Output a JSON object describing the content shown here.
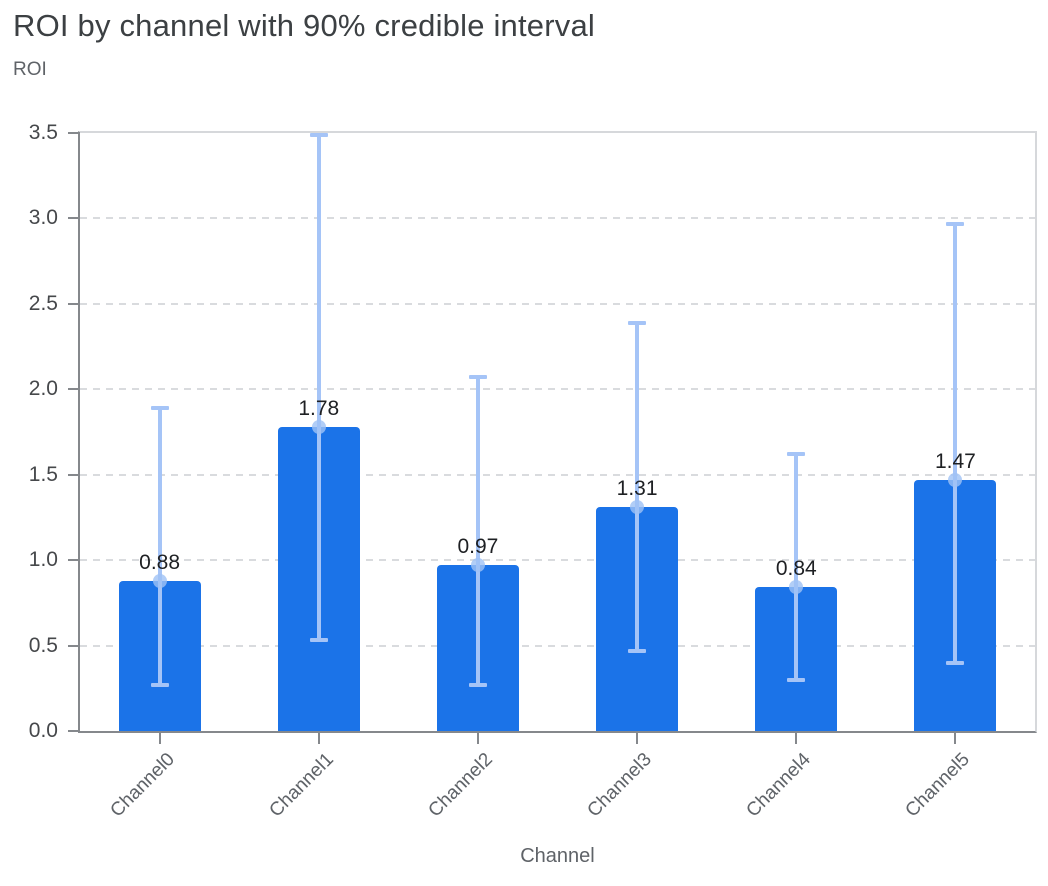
{
  "header": {
    "title": "ROI by channel with 90% credible interval"
  },
  "chart_data": {
    "type": "bar",
    "title": "ROI by channel with 90% credible interval",
    "xlabel": "Channel",
    "ylabel": "ROI",
    "categories": [
      "Channel0",
      "Channel1",
      "Channel2",
      "Channel3",
      "Channel4",
      "Channel5"
    ],
    "values": [
      0.88,
      1.78,
      0.97,
      1.31,
      0.84,
      1.47
    ],
    "value_labels": [
      "0.88",
      "1.78",
      "0.97",
      "1.31",
      "0.84",
      "1.47"
    ],
    "error_low": [
      0.27,
      0.53,
      0.27,
      0.47,
      0.3,
      0.4
    ],
    "error_high": [
      1.89,
      3.49,
      2.07,
      2.39,
      1.62,
      2.97
    ],
    "error_bar_meaning": "90% credible interval",
    "ylim": [
      0,
      3.5
    ],
    "ytick_step": 0.5,
    "ytick_labels": [
      "0.0",
      "0.5",
      "1.0",
      "1.5",
      "2.0",
      "2.5",
      "3.0",
      "3.5"
    ],
    "grid": "dashed-horizontal",
    "legend": "none",
    "x_label_rotation_deg": -45
  },
  "colors": {
    "bar": "#1b73e8",
    "error_bar": "#a5c4f7",
    "mean_marker": "#9fc2f5",
    "title_text": "#3c4043",
    "axis_title_text": "#5f6368",
    "tick_label_text": "#46484b",
    "value_label_text": "#1e2023",
    "grid_line": "#d9dbde",
    "axis_line": "#85888c",
    "view_border": "#d6d8db",
    "background": "#ffffff"
  }
}
